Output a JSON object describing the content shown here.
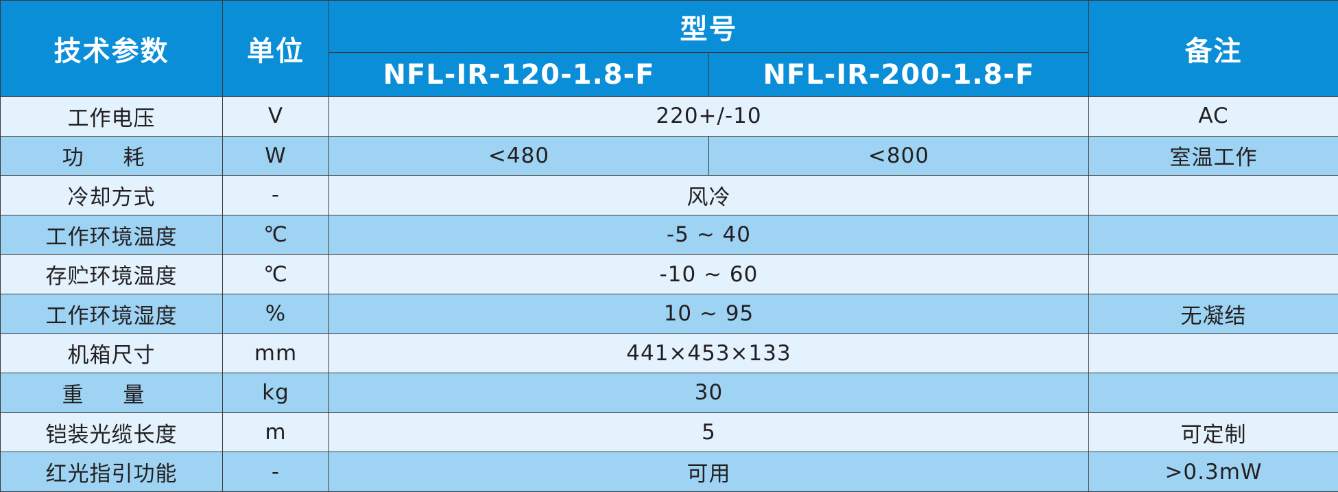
{
  "header": {
    "param": "技术参数",
    "unit": "单位",
    "model": "型号",
    "model_a": "NFL-IR-120-1.8-F",
    "model_b": "NFL-IR-200-1.8-F",
    "remark": "备注"
  },
  "rows": [
    {
      "name": "工作电压",
      "unit": "V",
      "value": "220+/-10",
      "remark": "AC"
    },
    {
      "name": "功 耗",
      "unit": "W",
      "value_a": "<480",
      "value_b": "<800",
      "remark": "室温工作"
    },
    {
      "name": "冷却方式",
      "unit": "-",
      "value": "风冷",
      "remark": ""
    },
    {
      "name": "工作环境温度",
      "unit": "℃",
      "value": "-5 ~ 40",
      "remark": ""
    },
    {
      "name": "存贮环境温度",
      "unit": "℃",
      "value": "-10 ~ 60",
      "remark": ""
    },
    {
      "name": "工作环境湿度",
      "unit": "%",
      "value": "10 ~ 95",
      "remark": "无凝结"
    },
    {
      "name": "机箱尺寸",
      "unit": "mm",
      "value": "441×453×133",
      "remark": ""
    },
    {
      "name": "重 量",
      "unit": "kg",
      "value": "30",
      "remark": ""
    },
    {
      "name": "铠装光缆长度",
      "unit": "m",
      "value": "5",
      "remark": "可定制"
    },
    {
      "name": "红光指引功能",
      "unit": "-",
      "value": "可用",
      "remark": ">0.3mW"
    }
  ]
}
